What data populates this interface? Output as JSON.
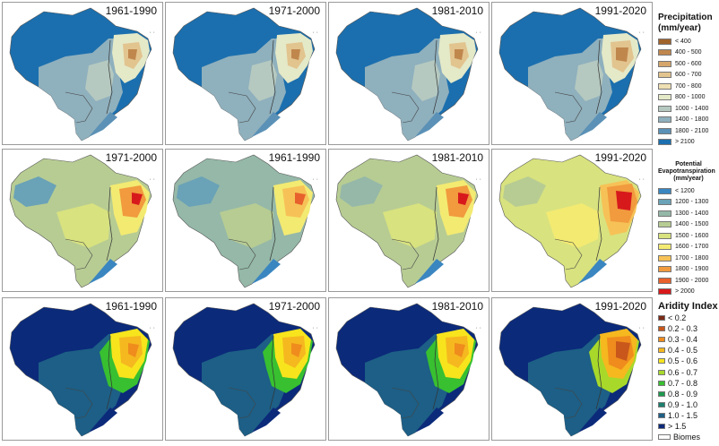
{
  "rows": [
    {
      "variable": "precipitation",
      "panels": [
        {
          "period": "1961-1990"
        },
        {
          "period": "1971-2000"
        },
        {
          "period": "1981-2010"
        },
        {
          "period": "1991-2020"
        }
      ]
    },
    {
      "variable": "evapotranspiration",
      "panels": [
        {
          "period": "1971-2000"
        },
        {
          "period": "1961-1990"
        },
        {
          "period": "1981-2010"
        },
        {
          "period": "1991-2020"
        }
      ]
    },
    {
      "variable": "aridity",
      "panels": [
        {
          "period": "1961-1990"
        },
        {
          "period": "1971-2000"
        },
        {
          "period": "1981-2010"
        },
        {
          "period": "1991-2020"
        }
      ]
    }
  ],
  "legends": {
    "precipitation": {
      "title_line1": "Precipitation",
      "title_line2": "(mm/year)",
      "items": [
        {
          "label": "< 400",
          "color": "#a0632c"
        },
        {
          "label": "400 - 500",
          "color": "#c0874d"
        },
        {
          "label": "500 - 600",
          "color": "#d4a66c"
        },
        {
          "label": "600 - 700",
          "color": "#e2c48f"
        },
        {
          "label": "700 - 800",
          "color": "#efe0b3"
        },
        {
          "label": "800 - 1000",
          "color": "#e4e9c8"
        },
        {
          "label": "1000 - 1400",
          "color": "#b5c9c0"
        },
        {
          "label": "1400 - 1800",
          "color": "#8fb0bd"
        },
        {
          "label": "1800 - 2100",
          "color": "#5b91b6"
        },
        {
          "label": "> 2100",
          "color": "#1b6fae"
        }
      ]
    },
    "evapotranspiration": {
      "title_line1": "Potential",
      "title_line2": "Evapotranspiration",
      "title_line3": "(mm/year)",
      "items": [
        {
          "label": "< 1200",
          "color": "#3a86c0"
        },
        {
          "label": "1200 - 1300",
          "color": "#6aa2b7"
        },
        {
          "label": "1300 - 1400",
          "color": "#95b8a8"
        },
        {
          "label": "1400 - 1500",
          "color": "#b7cc93"
        },
        {
          "label": "1500 - 1600",
          "color": "#d8e27f"
        },
        {
          "label": "1600 - 1700",
          "color": "#f3ea72"
        },
        {
          "label": "1700 - 1800",
          "color": "#f6c257"
        },
        {
          "label": "1800 - 1900",
          "color": "#f19a3e"
        },
        {
          "label": "1900 - 2000",
          "color": "#e8602c"
        },
        {
          "label": "> 2000",
          "color": "#d7191c"
        }
      ]
    },
    "aridity": {
      "title": "Aridity Index",
      "items": [
        {
          "label": "< 0.2",
          "color": "#7a2a16"
        },
        {
          "label": "0.2 - 0.3",
          "color": "#c9571b"
        },
        {
          "label": "0.3 - 0.4",
          "color": "#ef8c1d"
        },
        {
          "label": "0.4 - 0.5",
          "color": "#f5b81f"
        },
        {
          "label": "0.5 - 0.6",
          "color": "#f7e41d"
        },
        {
          "label": "0.6 - 0.7",
          "color": "#a8d92a"
        },
        {
          "label": "0.7 - 0.8",
          "color": "#38c030"
        },
        {
          "label": "0.8 - 0.9",
          "color": "#1e9a4e"
        },
        {
          "label": "0.9 - 1.0",
          "color": "#1c7f6e"
        },
        {
          "label": "1.0 - 1.5",
          "color": "#1d5f86"
        },
        {
          "label": "> 1.5",
          "color": "#0b2a7a"
        }
      ],
      "biomes_label": "Biomes"
    }
  }
}
